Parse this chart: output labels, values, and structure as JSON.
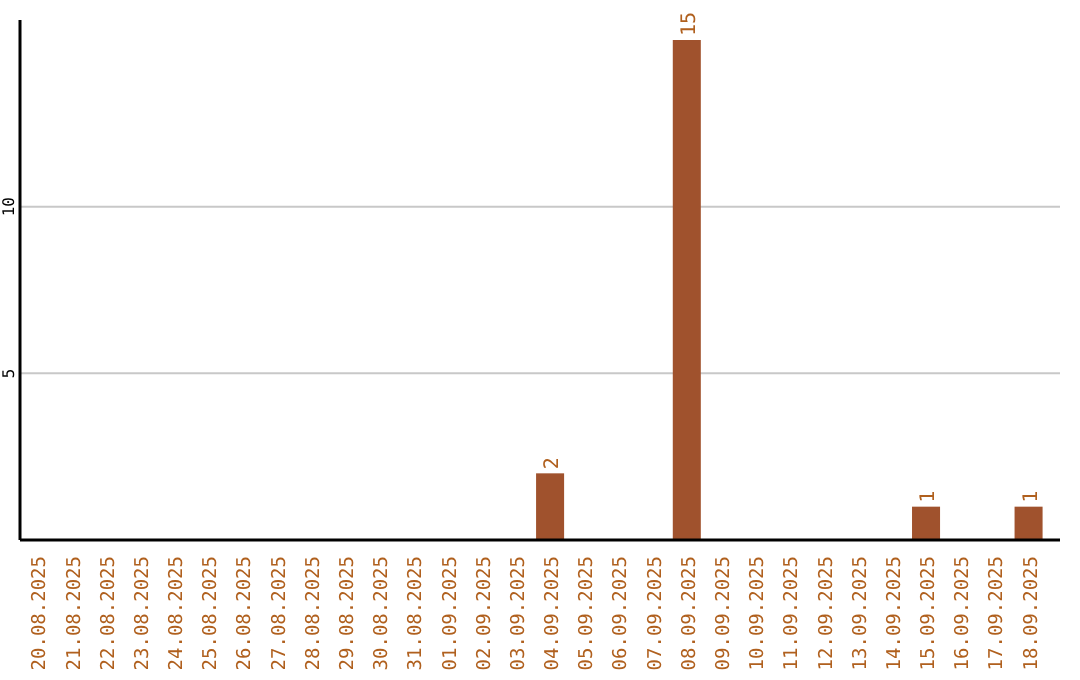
{
  "chart_data": {
    "type": "bar",
    "categories": [
      "20.08.2025",
      "21.08.2025",
      "22.08.2025",
      "23.08.2025",
      "24.08.2025",
      "25.08.2025",
      "26.08.2025",
      "27.08.2025",
      "28.08.2025",
      "29.08.2025",
      "30.08.2025",
      "31.08.2025",
      "01.09.2025",
      "02.09.2025",
      "03.09.2025",
      "04.09.2025",
      "05.09.2025",
      "06.09.2025",
      "07.09.2025",
      "08.09.2025",
      "09.09.2025",
      "10.09.2025",
      "11.09.2025",
      "12.09.2025",
      "13.09.2025",
      "14.09.2025",
      "15.09.2025",
      "16.09.2025",
      "17.09.2025",
      "18.09.2025"
    ],
    "values": [
      0,
      0,
      0,
      0,
      0,
      0,
      0,
      0,
      0,
      0,
      0,
      0,
      0,
      0,
      0,
      2,
      0,
      0,
      0,
      15,
      0,
      0,
      0,
      0,
      0,
      0,
      1,
      0,
      0,
      1
    ],
    "color": "#a0522d",
    "value_labels": [
      null,
      null,
      null,
      null,
      null,
      null,
      null,
      null,
      null,
      null,
      null,
      null,
      null,
      null,
      null,
      "2",
      null,
      null,
      null,
      "15",
      null,
      null,
      null,
      null,
      null,
      null,
      "1",
      null,
      null,
      "1"
    ],
    "ylim": [
      0,
      15.6
    ],
    "yticks": [
      5,
      10
    ],
    "grid": "y"
  }
}
